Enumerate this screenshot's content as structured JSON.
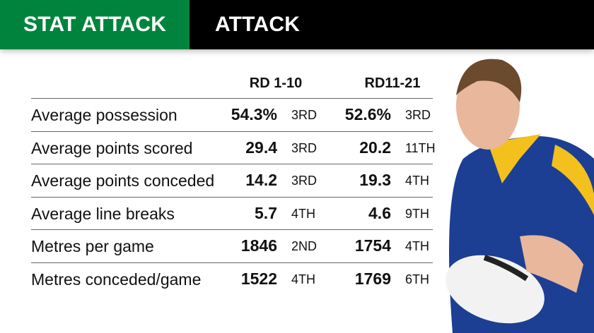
{
  "header": {
    "section": "STAT ATTACK",
    "title": "ATTACK",
    "accent_color": "#00843d"
  },
  "columns": [
    "RD 1-10",
    "RD11-21"
  ],
  "rows": [
    {
      "label": "Average possession",
      "v1": "54.3%",
      "r1": "3RD",
      "v2": "52.6%",
      "r2": "3RD"
    },
    {
      "label": "Average points scored",
      "v1": "29.4",
      "r1": "3RD",
      "v2": "20.2",
      "r2": "11TH"
    },
    {
      "label": "Average points conceded",
      "v1": "14.2",
      "r1": "3RD",
      "v2": "19.3",
      "r2": "4TH"
    },
    {
      "label": "Average line breaks",
      "v1": "5.7",
      "r1": "4TH",
      "v2": "4.6",
      "r2": "9TH"
    },
    {
      "label": "Metres per game",
      "v1": "1846",
      "r1": "2ND",
      "v2": "1754",
      "r2": "4TH"
    },
    {
      "label": "Metres conceded/game",
      "v1": "1522",
      "r1": "4TH",
      "v2": "1769",
      "r2": "6TH"
    }
  ]
}
